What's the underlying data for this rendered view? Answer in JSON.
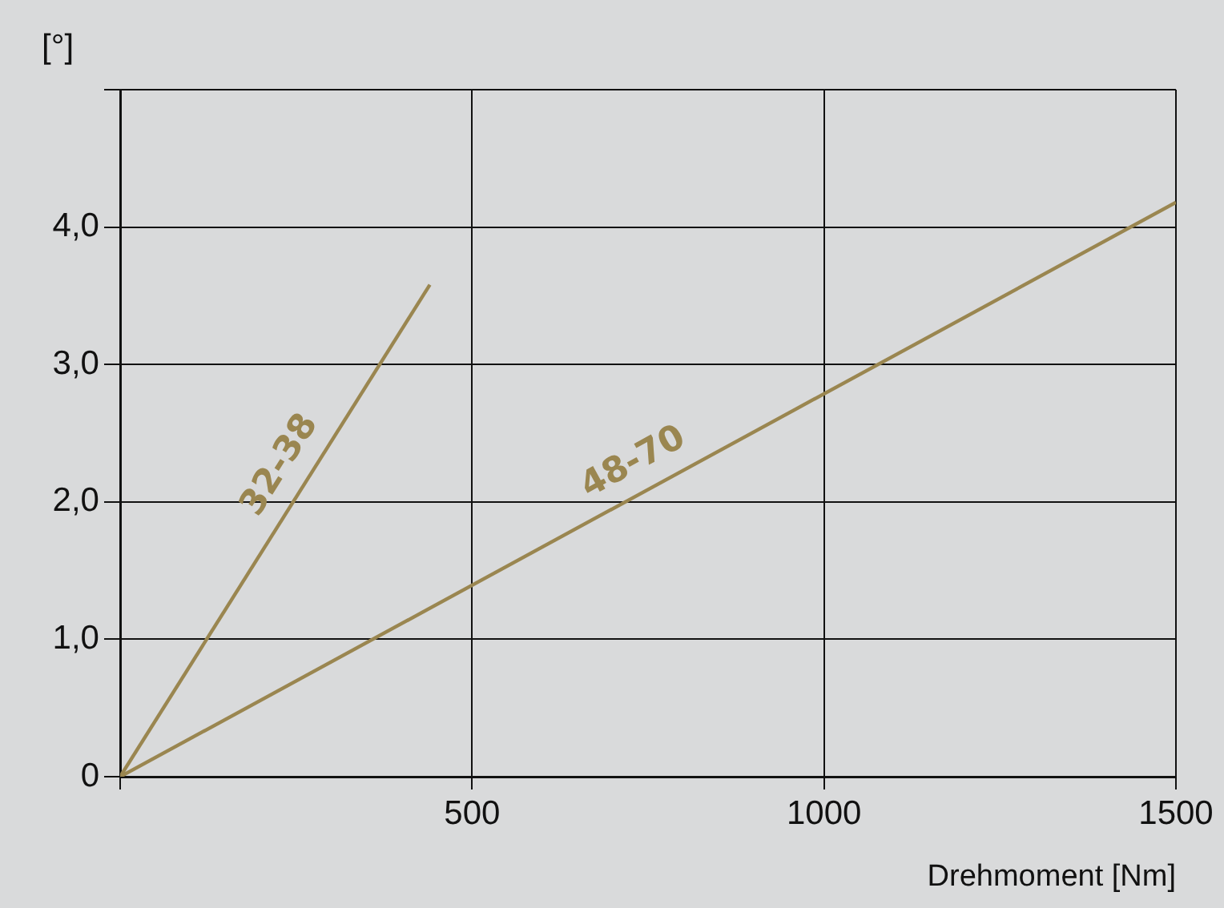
{
  "chart_data": {
    "type": "line",
    "xlabel": "Drehmoment [Nm]",
    "ylabel": "[°]",
    "series": [
      {
        "name": "32-38",
        "color": "#9a8650",
        "x": [
          0,
          440
        ],
        "values": [
          0,
          3.58
        ]
      },
      {
        "name": "48-70",
        "color": "#9a8650",
        "x": [
          0,
          1500
        ],
        "values": [
          0,
          4.18
        ]
      }
    ],
    "xlim": [
      0,
      1500
    ],
    "xticks": [
      {
        "value": 0,
        "label": null
      },
      500,
      1000,
      1500
    ],
    "ylim": [
      0,
      5
    ],
    "yticks": [
      0,
      {
        "value": 1,
        "label": "1,0"
      },
      {
        "value": 2,
        "label": "2,0"
      },
      {
        "value": 3,
        "label": "3,0"
      },
      {
        "value": 4,
        "label": "4,0"
      },
      {
        "value": 5,
        "label": null
      }
    ],
    "grid": true,
    "legend": false,
    "marker": "none",
    "line_style": "solid"
  }
}
